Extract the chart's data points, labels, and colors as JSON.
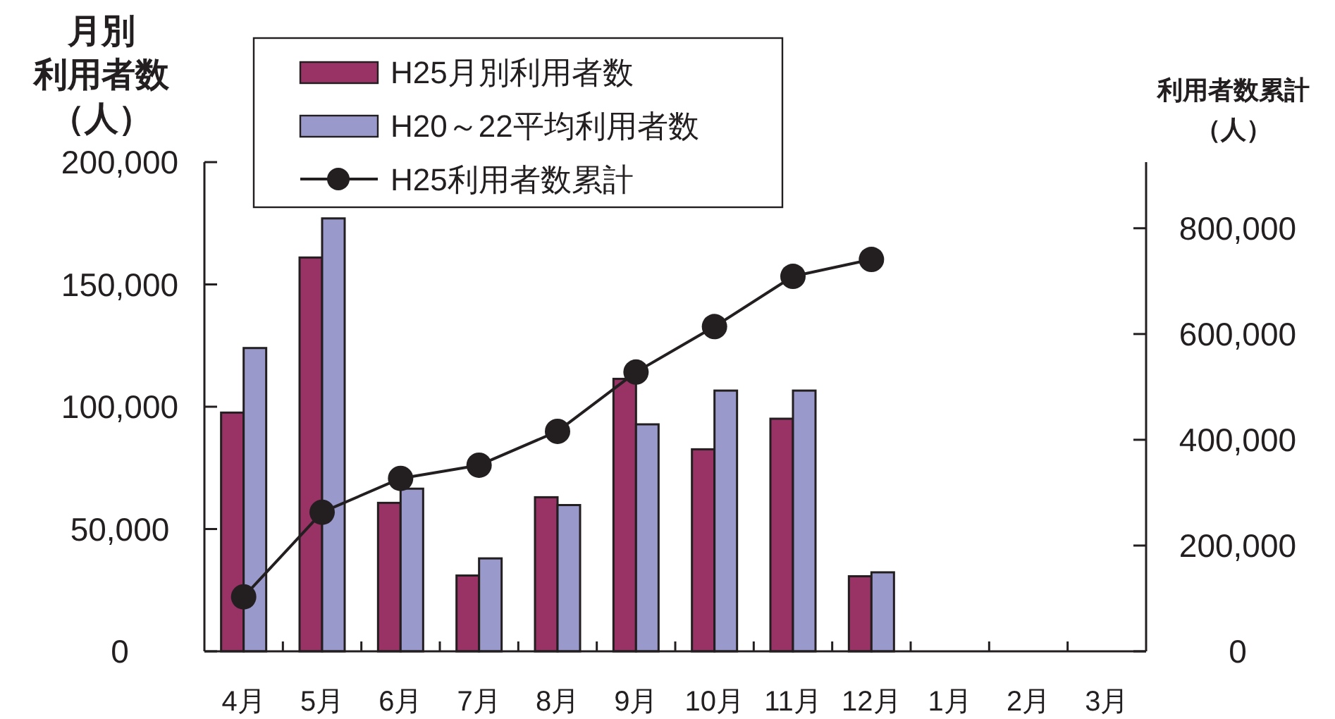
{
  "chart_data": {
    "type": "bar",
    "categories": [
      "4月",
      "5月",
      "6月",
      "7月",
      "8月",
      "9月",
      "10月",
      "11月",
      "12月",
      "1月",
      "2月",
      "3月"
    ],
    "series": [
      {
        "name": "H25月別利用者数",
        "type": "bar",
        "color": "#993366",
        "values": [
          97600,
          161000,
          60700,
          31000,
          63000,
          111400,
          82600,
          95100,
          30700,
          null,
          null,
          null
        ]
      },
      {
        "name": "H20～22平均利用者数",
        "type": "bar",
        "color": "#9999cc",
        "values": [
          124000,
          177000,
          66500,
          38000,
          59800,
          92800,
          106600,
          106600,
          32300,
          null,
          null,
          null
        ]
      },
      {
        "name": "H25利用者数累計",
        "type": "line",
        "axis": "y2",
        "marker": "circle",
        "color": "#231f20",
        "values": [
          103000,
          263000,
          327000,
          352000,
          416000,
          528000,
          614000,
          709000,
          741000,
          null,
          null,
          null
        ]
      }
    ],
    "ylabel": "月別利用者数（人）",
    "y2label": "利用者数累計（人）",
    "ylim": [
      0,
      200000
    ],
    "yticks": [
      0,
      {
        "value": 50000,
        "label": "50,000"
      },
      {
        "value": 100000,
        "label": "100,000"
      },
      {
        "value": 150000,
        "label": "150,000"
      },
      {
        "value": 200000,
        "label": "200,000"
      }
    ],
    "y2lim": [
      0,
      925000
    ],
    "y2ticks": [
      0,
      {
        "value": 200000,
        "label": "200,000"
      },
      {
        "value": 400000,
        "label": "400,000"
      },
      {
        "value": 600000,
        "label": "600,000"
      },
      {
        "value": 800000,
        "label": "800,000"
      }
    ],
    "legend": "top left"
  }
}
